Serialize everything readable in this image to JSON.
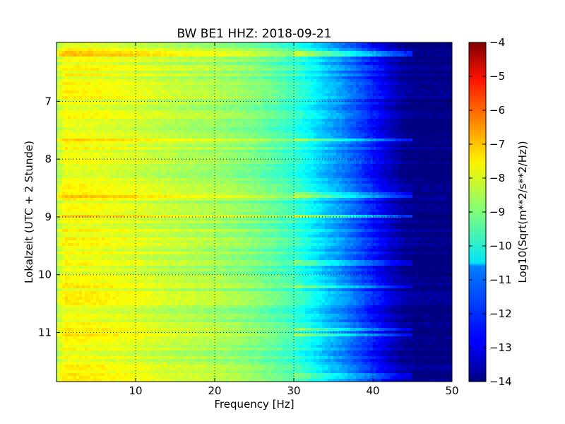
{
  "chart_data": {
    "type": "heatmap",
    "title": "BW BE1 HHZ: 2018-09-21",
    "xlabel": "Frequency [Hz]",
    "ylabel": "Lokalzeit (UTC + 2 Stunde)",
    "colorbar_label": "Log10(Sqrt(m**2/s**2/Hz))",
    "xlim": [
      0,
      50
    ],
    "ylim": [
      5.98,
      11.85
    ],
    "y_inverted": true,
    "x_ticks": [
      10,
      20,
      30,
      40,
      50
    ],
    "x_tick_labels": [
      "10",
      "20",
      "30",
      "40",
      "50"
    ],
    "y_ticks": [
      7,
      8,
      9,
      10,
      11
    ],
    "y_tick_labels": [
      "7",
      "8",
      "9",
      "10",
      "11"
    ],
    "clim": [
      -14,
      -4
    ],
    "colorbar_ticks": [
      -4,
      -5,
      -6,
      -7,
      -8,
      -9,
      -10,
      -11,
      -12,
      -13,
      -14
    ],
    "colorbar_tick_labels": [
      "−4",
      "−5",
      "−6",
      "−7",
      "−8",
      "−9",
      "−10",
      "−11",
      "−12",
      "−13",
      "−14"
    ],
    "colormap": "jet",
    "grid": true,
    "grid_style": "dotted",
    "spectral_profile": {
      "frequency_hz": [
        0,
        1,
        5,
        10,
        15,
        20,
        25,
        28,
        30,
        32,
        34,
        36,
        38,
        40,
        42,
        44,
        46,
        48,
        50
      ],
      "log10_amplitude": [
        -8.5,
        -7.8,
        -7.9,
        -8.1,
        -8.4,
        -8.6,
        -9.0,
        -9.4,
        -9.7,
        -10.2,
        -10.8,
        -11.3,
        -11.9,
        -12.5,
        -13.2,
        -13.8,
        -14.0,
        -14.0,
        -14.0
      ]
    },
    "bright_time_bands": [
      {
        "hour": 6.18,
        "boost": 1.0
      },
      {
        "hour": 7.68,
        "boost": 0.9
      },
      {
        "hour": 8.62,
        "boost": 0.9
      },
      {
        "hour": 9.0,
        "boost": 1.2
      },
      {
        "hour": 9.8,
        "boost": 0.7
      },
      {
        "hour": 10.2,
        "boost": 0.8
      },
      {
        "hour": 10.95,
        "boost": 1.0
      },
      {
        "hour": 11.05,
        "boost": 1.0
      },
      {
        "hour": 11.75,
        "boost": 0.7
      }
    ]
  }
}
